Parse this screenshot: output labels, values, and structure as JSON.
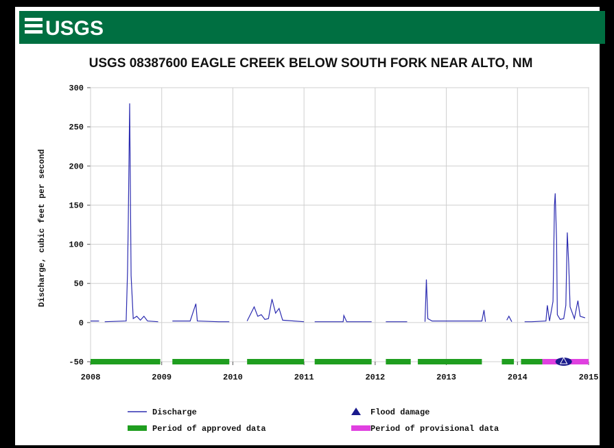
{
  "header": {
    "logo": "USGS"
  },
  "chart_data": {
    "type": "line",
    "title": "USGS 08387600 EAGLE CREEK BELOW SOUTH FORK NEAR ALTO, NM",
    "y_label": "Discharge, cubic feet per second",
    "x": [
      2008.0,
      2008.12,
      2008.15,
      2008.2,
      2008.5,
      2008.52,
      2008.53,
      2008.55,
      2008.57,
      2008.6,
      2008.65,
      2008.7,
      2008.75,
      2008.8,
      2008.95,
      2009.05,
      2009.15,
      2009.4,
      2009.48,
      2009.5,
      2009.8,
      2009.95,
      2010.1,
      2010.2,
      2010.3,
      2010.35,
      2010.4,
      2010.45,
      2010.5,
      2010.55,
      2010.6,
      2010.65,
      2010.7,
      2011.0,
      2011.08,
      2011.15,
      2011.55,
      2011.56,
      2011.6,
      2011.95,
      2012.05,
      2012.15,
      2012.45,
      2012.6,
      2012.7,
      2012.72,
      2012.74,
      2012.8,
      2013.5,
      2013.53,
      2013.55,
      2013.7,
      2013.85,
      2013.88,
      2013.92,
      2014.0,
      2014.1,
      2014.2,
      2014.4,
      2014.42,
      2014.45,
      2014.5,
      2014.52,
      2014.53,
      2014.55,
      2014.56,
      2014.6,
      2014.65,
      2014.68,
      2014.7,
      2014.72,
      2014.74,
      2014.8,
      2014.85,
      2014.88,
      2014.95
    ],
    "series": [
      {
        "name": "Discharge",
        "color": "#2b2bb0",
        "values": [
          2,
          2,
          null,
          1,
          2,
          65,
          130,
          280,
          60,
          5,
          8,
          3,
          8,
          2,
          1,
          null,
          2,
          2,
          24,
          2,
          1,
          1,
          null,
          2,
          20,
          8,
          10,
          4,
          5,
          30,
          12,
          18,
          3,
          1,
          null,
          1,
          1,
          9,
          1,
          1,
          null,
          1,
          1,
          null,
          1,
          55,
          5,
          2,
          2,
          16,
          1,
          null,
          3,
          8,
          1,
          null,
          1,
          1,
          2,
          22,
          2,
          27,
          150,
          165,
          105,
          10,
          4,
          5,
          22,
          115,
          75,
          20,
          5,
          28,
          8,
          6
        ]
      }
    ],
    "periods": [
      {
        "name": "Period of approved data",
        "color": "#1f9e1f",
        "ranges": [
          [
            2008.0,
            2008.98
          ],
          [
            2009.15,
            2009.95
          ],
          [
            2010.2,
            2011.0
          ],
          [
            2011.15,
            2011.95
          ],
          [
            2012.15,
            2012.5
          ],
          [
            2012.6,
            2013.5
          ],
          [
            2013.78,
            2013.95
          ],
          [
            2014.05,
            2014.35
          ]
        ]
      },
      {
        "name": "Period of provisional data",
        "color": "#e040e0",
        "ranges": [
          [
            2014.35,
            2015.0
          ]
        ]
      }
    ],
    "flood_damage": {
      "name": "Flood damage",
      "color": "#1a1a8c",
      "x": [
        2014.65
      ]
    },
    "xlim": [
      2008,
      2015
    ],
    "xticks": [
      2008,
      2009,
      2010,
      2011,
      2012,
      2013,
      2014,
      2015
    ],
    "ylim": [
      -50,
      300
    ],
    "yticks": [
      -50,
      0,
      50,
      100,
      150,
      200,
      250,
      300
    ],
    "grid": true
  }
}
